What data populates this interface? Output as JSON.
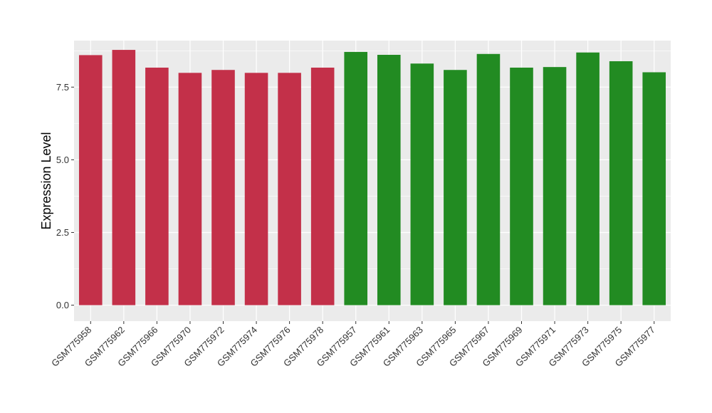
{
  "chart_data": {
    "type": "bar",
    "title": "",
    "xlabel": "",
    "ylabel": "Expression Level",
    "ylim": [
      -0.55,
      9.1
    ],
    "yticks": [
      0.0,
      2.5,
      5.0,
      7.5
    ],
    "ytick_labels": [
      "0.0",
      "2.5",
      "5.0",
      "7.5"
    ],
    "grid": true,
    "legend": "none",
    "colors": {
      "group1": "#c33049",
      "group2": "#228b22",
      "panel": "#ebebeb",
      "grid": "#ffffff"
    },
    "categories": [
      "GSM775958",
      "GSM775962",
      "GSM775966",
      "GSM775970",
      "GSM775972",
      "GSM775974",
      "GSM775976",
      "GSM775978",
      "GSM775957",
      "GSM775961",
      "GSM775963",
      "GSM775965",
      "GSM775967",
      "GSM775969",
      "GSM775971",
      "GSM775973",
      "GSM775975",
      "GSM775977"
    ],
    "values": [
      8.6,
      8.78,
      8.17,
      7.99,
      8.09,
      7.99,
      7.99,
      8.17,
      8.71,
      8.61,
      8.31,
      8.09,
      8.64,
      8.17,
      8.19,
      8.69,
      8.39,
      8.01
    ],
    "bar_group": [
      0,
      0,
      0,
      0,
      0,
      0,
      0,
      0,
      1,
      1,
      1,
      1,
      1,
      1,
      1,
      1,
      1,
      1
    ]
  }
}
